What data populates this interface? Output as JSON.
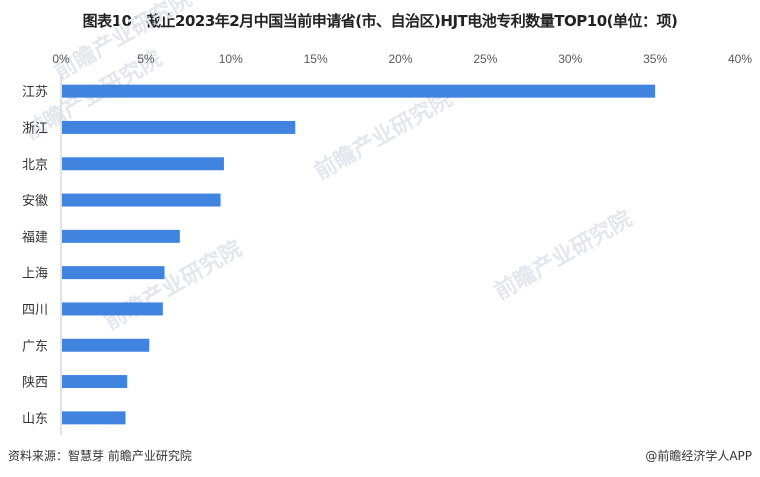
{
  "title": "图表10：截止2023年2月中国当前申请省(市、自治区)HJT电池专利数量TOP10(单位：项)",
  "source": "资料来源：智慧芽 前瞻产业研究院",
  "credit": "@前瞻经济学人APP",
  "watermark": "前瞻产业研究院",
  "colors": {
    "bar": "#4184e0",
    "axis": "#d9d9d9",
    "text": "#595959"
  },
  "chart_data": {
    "type": "bar",
    "orientation": "horizontal",
    "title": "图表10：截止2023年2月中国当前申请省(市、自治区)HJT电池专利数量TOP10(单位：项)",
    "categories": [
      "江苏",
      "浙江",
      "北京",
      "安徽",
      "福建",
      "上海",
      "四川",
      "广东",
      "陕西",
      "山东"
    ],
    "values": [
      35.0,
      13.8,
      9.6,
      9.4,
      7.0,
      6.1,
      6.0,
      5.2,
      3.9,
      3.8
    ],
    "unit": "%",
    "xlim": [
      0,
      40
    ],
    "x_ticks": [
      "0%",
      "5%",
      "10%",
      "15%",
      "20%",
      "25%",
      "30%",
      "35%",
      "40%"
    ],
    "x_axis_position": "top",
    "grid": false,
    "legend": "none"
  }
}
